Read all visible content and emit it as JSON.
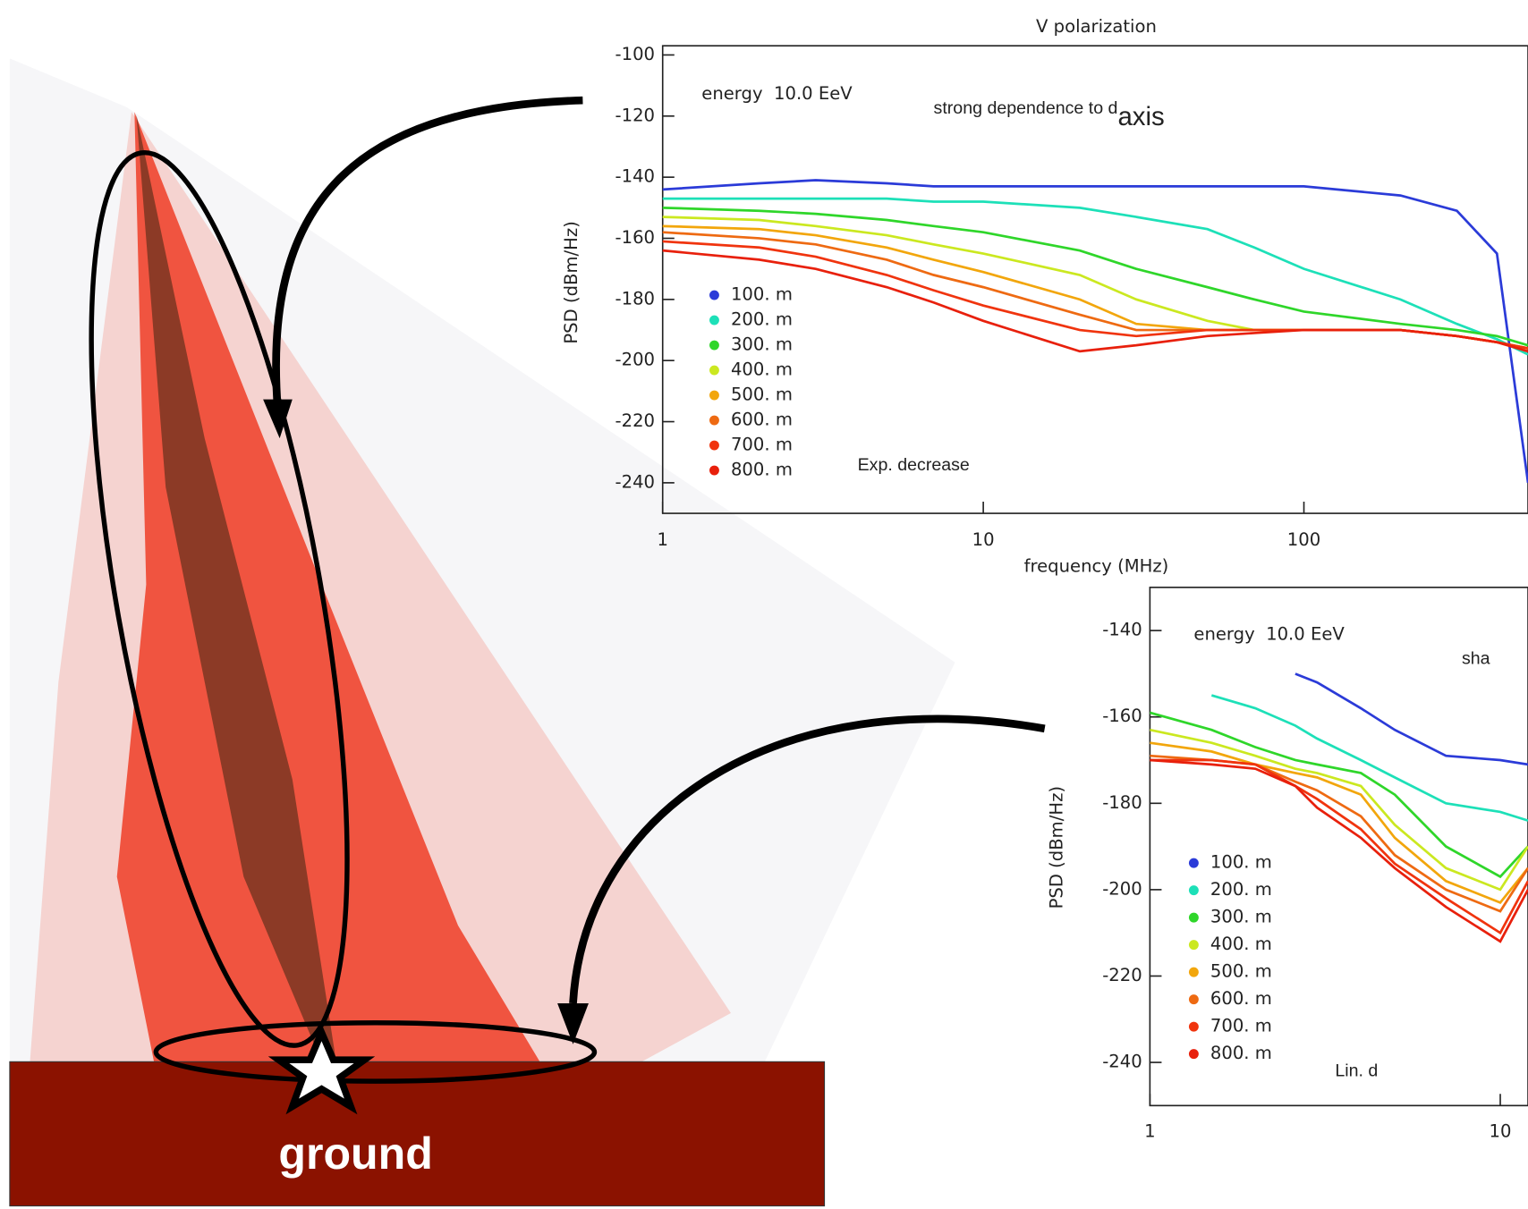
{
  "illustration": {
    "label": "ground"
  },
  "chart_data": [
    {
      "type": "line",
      "title": "V polarization",
      "xlabel": "frequency (MHz)",
      "ylabel": "PSD (dBm/Hz)",
      "xscale": "log",
      "annotations": [
        "energy  10.0 EeV",
        "strong dependence to d",
        "axis",
        "Exp. decrease"
      ],
      "x": [
        1,
        2,
        3,
        5,
        7,
        10,
        20,
        30,
        50,
        70,
        100,
        200,
        300,
        400,
        500
      ],
      "xlim": [
        1,
        500
      ],
      "xticks": [
        1,
        10,
        100
      ],
      "ylim": [
        -250,
        -97
      ],
      "yticks": [
        -100,
        -120,
        -140,
        -160,
        -180,
        -200,
        -220,
        -240
      ],
      "series": [
        {
          "name": "100. m",
          "color": "#2b3bd8",
          "values": [
            -144,
            -142,
            -141,
            -142,
            -143,
            -143,
            -143,
            -143,
            -143,
            -143,
            -143,
            -146,
            -151,
            -165,
            -240
          ]
        },
        {
          "name": "200. m",
          "color": "#1de0b8",
          "values": [
            -147,
            -147,
            -147,
            -147,
            -148,
            -148,
            -150,
            -153,
            -157,
            -163,
            -170,
            -180,
            -188,
            -193,
            -198
          ]
        },
        {
          "name": "300. m",
          "color": "#2fd62a",
          "values": [
            -150,
            -151,
            -152,
            -154,
            -156,
            -158,
            -164,
            -170,
            -176,
            -180,
            -184,
            -188,
            -190,
            -192,
            -195
          ]
        },
        {
          "name": "400. m",
          "color": "#cbe820",
          "values": [
            -153,
            -154,
            -156,
            -159,
            -162,
            -165,
            -172,
            -180,
            -187,
            -190,
            -190,
            -190,
            -192,
            -194,
            -196
          ]
        },
        {
          "name": "500. m",
          "color": "#f2a60c",
          "values": [
            -156,
            -157,
            -159,
            -163,
            -167,
            -171,
            -180,
            -188,
            -190,
            -190,
            -190,
            -190,
            -192,
            -194,
            -196
          ]
        },
        {
          "name": "600. m",
          "color": "#ee6a12",
          "values": [
            -158,
            -160,
            -162,
            -167,
            -172,
            -176,
            -185,
            -190,
            -190,
            -190,
            -190,
            -190,
            -192,
            -194,
            -196
          ]
        },
        {
          "name": "700. m",
          "color": "#f0340e",
          "values": [
            -161,
            -163,
            -166,
            -172,
            -177,
            -182,
            -190,
            -192,
            -190,
            -190,
            -190,
            -190,
            -192,
            -194,
            -196
          ]
        },
        {
          "name": "800. m",
          "color": "#e8200c",
          "values": [
            -164,
            -167,
            -170,
            -176,
            -181,
            -187,
            -197,
            -195,
            -192,
            -191,
            -190,
            -190,
            -192,
            -194,
            -197
          ]
        }
      ]
    },
    {
      "type": "line",
      "ylabel": "PSD (dBm/Hz)",
      "xscale": "log",
      "annotations": [
        "energy  10.0 EeV",
        "sha",
        "Lin. d"
      ],
      "x": [
        1,
        1.5,
        2,
        2.6,
        3,
        4,
        5,
        7,
        10,
        12
      ],
      "xlim": [
        1,
        12
      ],
      "xticks": [
        1,
        10
      ],
      "ylim": [
        -250,
        -130
      ],
      "yticks": [
        -140,
        -160,
        -180,
        -200,
        -220,
        -240
      ],
      "series": [
        {
          "name": "100. m",
          "color": "#2b3bd8",
          "values": [
            null,
            null,
            null,
            -150,
            -152,
            -158,
            -163,
            -169,
            -170,
            -171
          ]
        },
        {
          "name": "200. m",
          "color": "#1de0b8",
          "values": [
            null,
            -155,
            -158,
            -162,
            -165,
            -170,
            -174,
            -180,
            -182,
            -184
          ]
        },
        {
          "name": "300. m",
          "color": "#2fd62a",
          "values": [
            -159,
            -163,
            -167,
            -170,
            -171,
            -173,
            -178,
            -190,
            -197,
            -190
          ]
        },
        {
          "name": "400. m",
          "color": "#cbe820",
          "values": [
            -163,
            -166,
            -169,
            -172,
            -173,
            -176,
            -185,
            -195,
            -200,
            -190
          ]
        },
        {
          "name": "500. m",
          "color": "#f2a60c",
          "values": [
            -166,
            -168,
            -171,
            -173,
            -174,
            -178,
            -188,
            -198,
            -203,
            -195
          ]
        },
        {
          "name": "600. m",
          "color": "#ee6a12",
          "values": [
            -169,
            -170,
            -171,
            -175,
            -177,
            -183,
            -192,
            -200,
            -205,
            -195
          ]
        },
        {
          "name": "700. m",
          "color": "#f0340e",
          "values": [
            -170,
            -170,
            -171,
            -176,
            -179,
            -186,
            -194,
            -202,
            -210,
            -198
          ]
        },
        {
          "name": "800. m",
          "color": "#e8200c",
          "values": [
            -170,
            -171,
            -172,
            -176,
            -181,
            -188,
            -195,
            -204,
            -212,
            -200
          ]
        }
      ]
    }
  ]
}
